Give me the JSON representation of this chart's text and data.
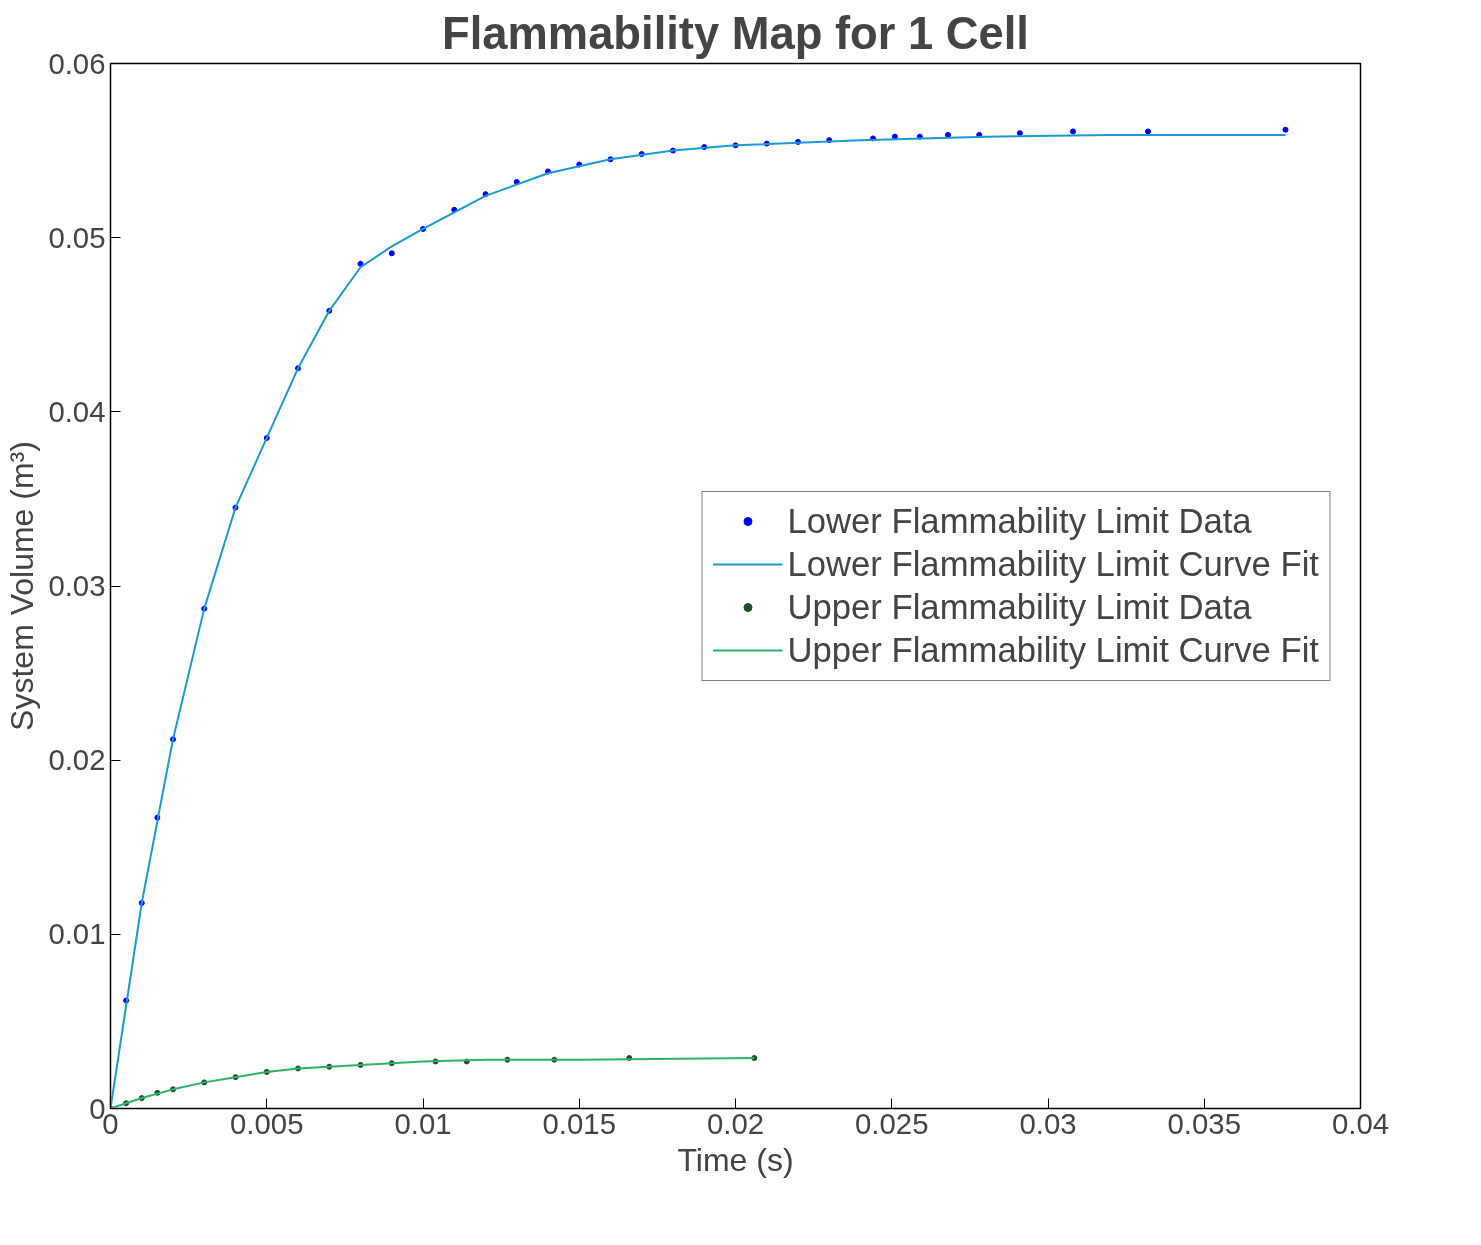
{
  "chart_data": {
    "type": "line",
    "title": "Flammability Map for 1 Cell",
    "xlabel": "Time (s)",
    "ylabel": "System Volume (m³)",
    "xlim": [
      0,
      0.04
    ],
    "ylim": [
      0,
      0.06
    ],
    "xticks": [
      0,
      0.005,
      0.01,
      0.015,
      0.02,
      0.025,
      0.03,
      0.035,
      0.04
    ],
    "yticks": [
      0,
      0.01,
      0.02,
      0.03,
      0.04,
      0.05,
      0.06
    ],
    "grid": false,
    "legend": "right",
    "series": [
      {
        "name": "Lower Flammability Limit Data",
        "type": "scatter",
        "marker": "circle",
        "color": "#0000ff",
        "x": [
          0.0005,
          0.001,
          0.0015,
          0.002,
          0.003,
          0.004,
          0.005,
          0.006,
          0.007,
          0.008,
          0.009,
          0.01,
          0.011,
          0.012,
          0.013,
          0.014,
          0.015,
          0.016,
          0.017,
          0.018,
          0.019,
          0.02,
          0.021,
          0.022,
          0.023,
          0.0244,
          0.0251,
          0.0259,
          0.0268,
          0.0278,
          0.0291,
          0.0308,
          0.0332,
          0.0376
        ],
        "values": [
          0.0062,
          0.0118,
          0.0167,
          0.0212,
          0.0287,
          0.0345,
          0.0385,
          0.0425,
          0.0458,
          0.0485,
          0.0491,
          0.0505,
          0.0516,
          0.0525,
          0.0532,
          0.0538,
          0.0542,
          0.0545,
          0.0548,
          0.055,
          0.0552,
          0.0553,
          0.0554,
          0.0555,
          0.0556,
          0.0557,
          0.0558,
          0.0558,
          0.0559,
          0.0559,
          0.056,
          0.0561,
          0.0561,
          0.0562
        ]
      },
      {
        "name": "Lower Flammability Limit Curve Fit",
        "color": "#1a9ad6",
        "x": [
          0,
          0.001,
          0.002,
          0.003,
          0.004,
          0.005,
          0.006,
          0.007,
          0.008,
          0.009,
          0.01,
          0.012,
          0.014,
          0.016,
          0.018,
          0.02,
          0.024,
          0.028,
          0.032,
          0.0376
        ],
        "values": [
          0,
          0.0118,
          0.0212,
          0.0287,
          0.0345,
          0.0385,
          0.0425,
          0.0458,
          0.0483,
          0.0495,
          0.0505,
          0.0524,
          0.0537,
          0.0545,
          0.055,
          0.0553,
          0.0556,
          0.0558,
          0.0559,
          0.0559
        ]
      },
      {
        "name": "Upper Flammability Limit Data",
        "type": "scatter",
        "marker": "circle",
        "color": "#1e4d2b",
        "x": [
          0,
          0.0005,
          0.001,
          0.0015,
          0.002,
          0.003,
          0.004,
          0.005,
          0.006,
          0.007,
          0.008,
          0.009,
          0.0104,
          0.0114,
          0.0127,
          0.0142,
          0.0166,
          0.0206
        ],
        "values": [
          0,
          0.0003,
          0.0006,
          0.0009,
          0.0011,
          0.0015,
          0.0018,
          0.0021,
          0.0023,
          0.0024,
          0.0025,
          0.0026,
          0.0027,
          0.0027,
          0.0028,
          0.0028,
          0.0029,
          0.0029
        ]
      },
      {
        "name": "Upper Flammability Limit Curve Fit",
        "color": "#2db36a",
        "x": [
          0,
          0.001,
          0.002,
          0.003,
          0.004,
          0.005,
          0.006,
          0.008,
          0.01,
          0.012,
          0.015,
          0.0206
        ],
        "values": [
          0,
          0.0006,
          0.0011,
          0.0015,
          0.0018,
          0.0021,
          0.0023,
          0.0025,
          0.0027,
          0.0028,
          0.0028,
          0.0029
        ]
      }
    ]
  }
}
